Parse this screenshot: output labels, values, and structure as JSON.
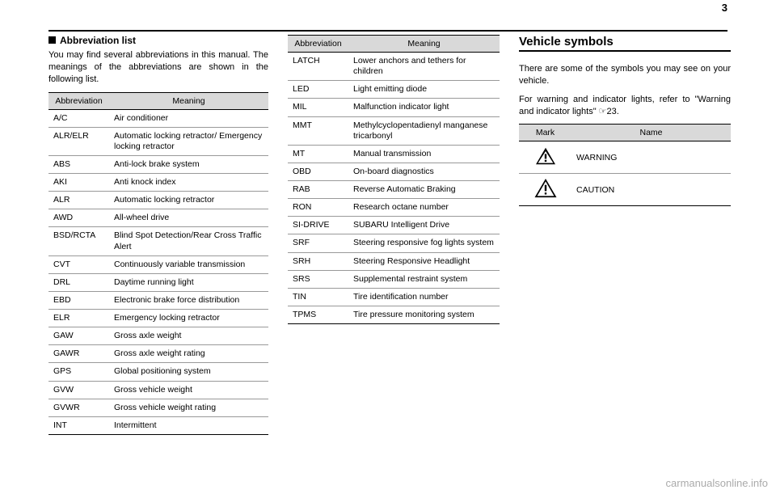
{
  "page_number": "3",
  "section1": {
    "heading": "Abbreviation list",
    "intro": "You may find several abbreviations in this manual. The meanings of the abbreviations are shown in the following list."
  },
  "table1": {
    "header_abbr": "Abbreviation",
    "header_meaning": "Meaning",
    "rows": [
      {
        "abbr": "A/C",
        "meaning": "Air conditioner"
      },
      {
        "abbr": "ALR/ELR",
        "meaning": "Automatic locking retractor/ Emergency locking retractor"
      },
      {
        "abbr": "ABS",
        "meaning": "Anti-lock brake system"
      },
      {
        "abbr": "AKI",
        "meaning": "Anti knock index"
      },
      {
        "abbr": "ALR",
        "meaning": "Automatic locking retractor"
      },
      {
        "abbr": "AWD",
        "meaning": "All-wheel drive"
      },
      {
        "abbr": "BSD/RCTA",
        "meaning": "Blind Spot Detection/Rear Cross Traffic Alert"
      },
      {
        "abbr": "CVT",
        "meaning": "Continuously variable transmission"
      },
      {
        "abbr": "DRL",
        "meaning": "Daytime running light"
      },
      {
        "abbr": "EBD",
        "meaning": "Electronic brake force distribution"
      },
      {
        "abbr": "ELR",
        "meaning": "Emergency locking retractor"
      },
      {
        "abbr": "GAW",
        "meaning": "Gross axle weight"
      },
      {
        "abbr": "GAWR",
        "meaning": "Gross axle weight rating"
      },
      {
        "abbr": "GPS",
        "meaning": "Global positioning system"
      },
      {
        "abbr": "GVW",
        "meaning": "Gross vehicle weight"
      },
      {
        "abbr": "GVWR",
        "meaning": "Gross vehicle weight rating"
      },
      {
        "abbr": "INT",
        "meaning": "Intermittent"
      }
    ]
  },
  "table2": {
    "header_abbr": "Abbreviation",
    "header_meaning": "Meaning",
    "rows": [
      {
        "abbr": "LATCH",
        "meaning": "Lower anchors and tethers for children"
      },
      {
        "abbr": "LED",
        "meaning": "Light emitting diode"
      },
      {
        "abbr": "MIL",
        "meaning": "Malfunction indicator light"
      },
      {
        "abbr": "MMT",
        "meaning": "Methylcyclopentadienyl manganese tricarbonyl"
      },
      {
        "abbr": "MT",
        "meaning": "Manual transmission"
      },
      {
        "abbr": "OBD",
        "meaning": "On-board diagnostics"
      },
      {
        "abbr": "RAB",
        "meaning": "Reverse Automatic Braking"
      },
      {
        "abbr": "RON",
        "meaning": "Research octane number"
      },
      {
        "abbr": "SI-DRIVE",
        "meaning": "SUBARU Intelligent Drive"
      },
      {
        "abbr": "SRF",
        "meaning": "Steering responsive fog lights system"
      },
      {
        "abbr": "SRH",
        "meaning": "Steering Responsive Headlight"
      },
      {
        "abbr": "SRS",
        "meaning": "Supplemental restraint system"
      },
      {
        "abbr": "TIN",
        "meaning": "Tire identification number"
      },
      {
        "abbr": "TPMS",
        "meaning": "Tire pressure monitoring system"
      }
    ]
  },
  "section2": {
    "heading": "Vehicle symbols",
    "intro1": "There are some of the symbols you may see on your vehicle.",
    "intro2": "For warning and indicator lights, refer to \"Warning and indicator lights\" ☞23."
  },
  "table3": {
    "header_mark": "Mark",
    "header_name": "Name",
    "rows": [
      {
        "name": "WARNING"
      },
      {
        "name": "CAUTION"
      }
    ]
  },
  "watermark": "carmanualsonline.info"
}
